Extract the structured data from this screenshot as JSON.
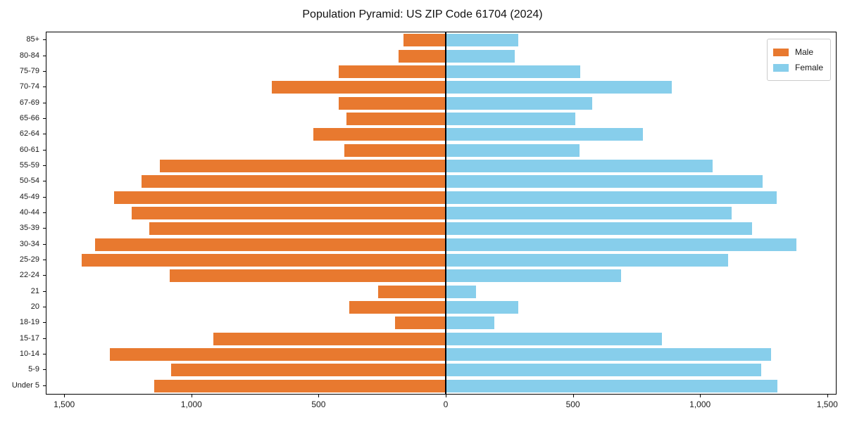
{
  "title": "Population Pyramid: US ZIP Code 61704 (2024)",
  "legend": {
    "male_label": "Male",
    "female_label": "Female"
  },
  "colors": {
    "male": "#E8792F",
    "female": "#87CEEB",
    "axis": "#000000",
    "legend_border": "#CCCCCC",
    "background": "#FFFFFF"
  },
  "chart_data": {
    "type": "bar",
    "variant": "population-pyramid",
    "title": "Population Pyramid: US ZIP Code 61704 (2024)",
    "categories_top_to_bottom": [
      "85+",
      "80-84",
      "75-79",
      "70-74",
      "67-69",
      "65-66",
      "62-64",
      "60-61",
      "55-59",
      "50-54",
      "45-49",
      "40-44",
      "35-39",
      "30-34",
      "25-29",
      "22-24",
      "21",
      "20",
      "18-19",
      "15-17",
      "10-14",
      "5-9",
      "Under 5"
    ],
    "series": [
      {
        "name": "Male",
        "side": "left",
        "color": "#E8792F",
        "values": [
          165,
          185,
          420,
          685,
          420,
          390,
          520,
          400,
          1125,
          1195,
          1305,
          1235,
          1165,
          1380,
          1430,
          1085,
          265,
          380,
          200,
          915,
          1320,
          1080,
          1145
        ]
      },
      {
        "name": "Female",
        "side": "right",
        "color": "#87CEEB",
        "values": [
          285,
          270,
          530,
          890,
          575,
          510,
          775,
          525,
          1050,
          1245,
          1300,
          1125,
          1205,
          1380,
          1110,
          690,
          120,
          285,
          190,
          850,
          1280,
          1240,
          1305
        ]
      }
    ],
    "x_tick_values": [
      -1500,
      -1000,
      -500,
      0,
      500,
      1000,
      1500
    ],
    "x_tick_labels": [
      "1,500",
      "1,000",
      "500",
      "0",
      "500",
      "1,000",
      "1,500"
    ],
    "xlim": [
      -1570,
      1535
    ],
    "xlabel": "",
    "ylabel": "",
    "grid": false,
    "legend_position": "upper right",
    "center_axis_line": true
  }
}
